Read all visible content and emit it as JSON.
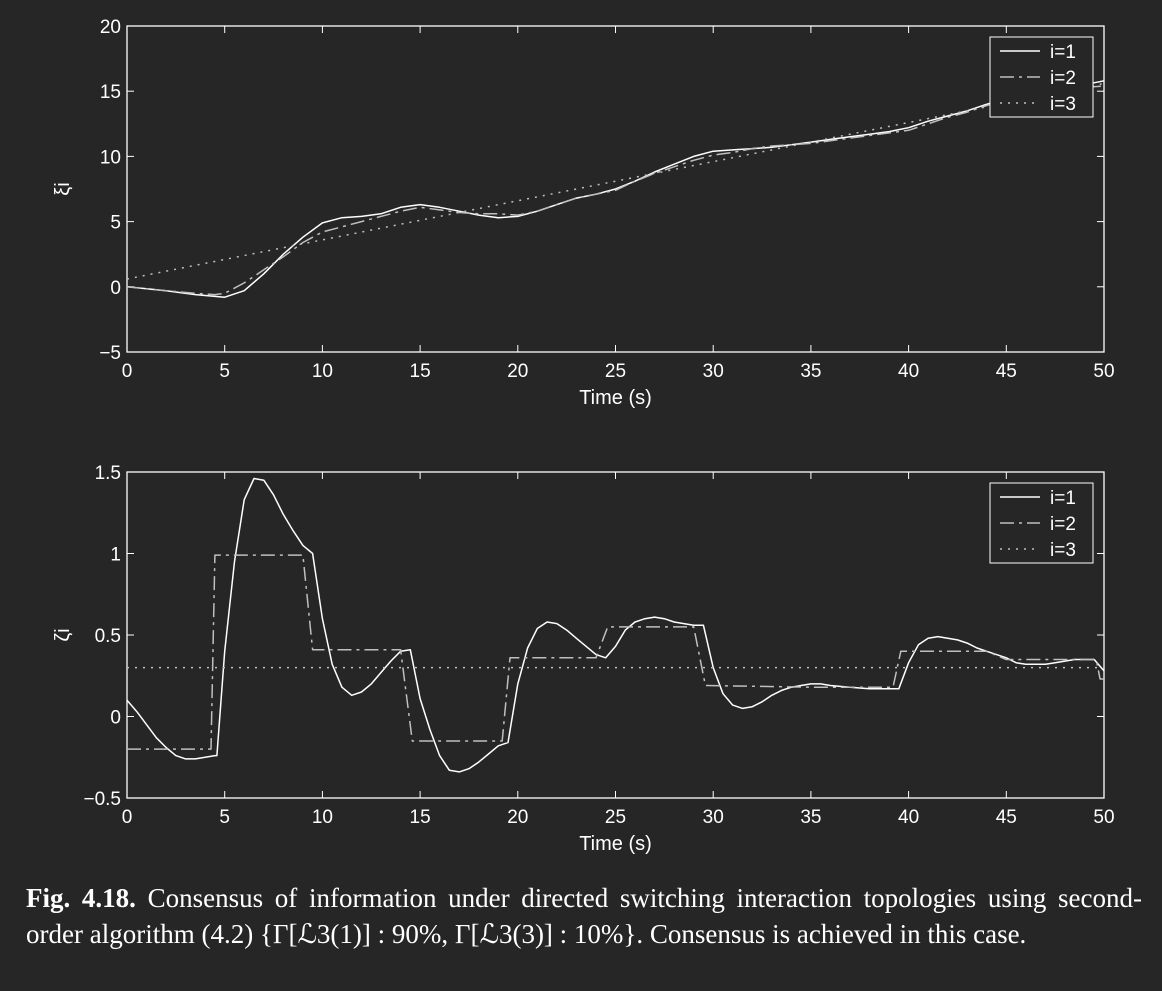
{
  "chart_data": [
    {
      "type": "line",
      "xlabel": "Time (s)",
      "ylabel": "ξi",
      "xlim": [
        0,
        50
      ],
      "ylim": [
        -5,
        20
      ],
      "xticks": [
        "0",
        "5",
        "10",
        "15",
        "20",
        "25",
        "30",
        "35",
        "40",
        "45",
        "50"
      ],
      "yticks": [
        "−5",
        "0",
        "5",
        "10",
        "15",
        "20"
      ],
      "legend_position": "top-right",
      "series": [
        {
          "name": "i=1",
          "style": "solid",
          "color": "#ffffff",
          "points": [
            [
              0,
              0
            ],
            [
              2,
              -0.3
            ],
            [
              3.5,
              -0.6
            ],
            [
              5,
              -0.8
            ],
            [
              6,
              -0.3
            ],
            [
              7,
              1
            ],
            [
              8,
              2.5
            ],
            [
              9,
              3.8
            ],
            [
              10,
              4.9
            ],
            [
              11,
              5.3
            ],
            [
              12,
              5.4
            ],
            [
              13,
              5.6
            ],
            [
              14,
              6.1
            ],
            [
              15,
              6.3
            ],
            [
              16,
              6.1
            ],
            [
              17,
              5.8
            ],
            [
              18,
              5.5
            ],
            [
              19,
              5.3
            ],
            [
              20,
              5.4
            ],
            [
              21,
              5.8
            ],
            [
              22,
              6.3
            ],
            [
              23,
              6.8
            ],
            [
              24,
              7.1
            ],
            [
              25,
              7.5
            ],
            [
              26,
              8.1
            ],
            [
              27,
              8.8
            ],
            [
              28,
              9.4
            ],
            [
              29,
              10
            ],
            [
              30,
              10.4
            ],
            [
              31,
              10.5
            ],
            [
              32,
              10.6
            ],
            [
              33,
              10.7
            ],
            [
              34,
              10.9
            ],
            [
              35,
              11.1
            ],
            [
              36,
              11.3
            ],
            [
              37,
              11.5
            ],
            [
              38,
              11.7
            ],
            [
              39,
              11.9
            ],
            [
              40,
              12.2
            ],
            [
              41,
              12.7
            ],
            [
              42,
              13.1
            ],
            [
              43,
              13.5
            ],
            [
              44,
              14
            ],
            [
              45,
              14.4
            ],
            [
              46,
              14.8
            ],
            [
              47,
              15.1
            ],
            [
              48,
              15.3
            ],
            [
              49,
              15.5
            ],
            [
              50,
              15.8
            ]
          ]
        },
        {
          "name": "i=2",
          "style": "dashdot",
          "color": "#bfbfbf",
          "points": [
            [
              0,
              0
            ],
            [
              2,
              -0.3
            ],
            [
              3.5,
              -0.5
            ],
            [
              4.5,
              -0.6
            ],
            [
              5,
              -0.5
            ],
            [
              6,
              0.3
            ],
            [
              7,
              1.3
            ],
            [
              8,
              2.3
            ],
            [
              9,
              3.4
            ],
            [
              10,
              4.2
            ],
            [
              11,
              4.6
            ],
            [
              12,
              5
            ],
            [
              13,
              5.4
            ],
            [
              14,
              5.8
            ],
            [
              15,
              6.1
            ],
            [
              16,
              5.9
            ],
            [
              17,
              5.7
            ],
            [
              18,
              5.6
            ],
            [
              19,
              5.6
            ],
            [
              20,
              5.5
            ],
            [
              21,
              5.8
            ],
            [
              22,
              6.3
            ],
            [
              23,
              6.8
            ],
            [
              24,
              7.1
            ],
            [
              25,
              7.4
            ],
            [
              26,
              8.1
            ],
            [
              27,
              8.7
            ],
            [
              28,
              9.2
            ],
            [
              29,
              9.7
            ],
            [
              30,
              10.1
            ],
            [
              31,
              10.3
            ],
            [
              32,
              10.6
            ],
            [
              33,
              10.8
            ],
            [
              34,
              10.9
            ],
            [
              35,
              11
            ],
            [
              36,
              11.2
            ],
            [
              37,
              11.4
            ],
            [
              38,
              11.6
            ],
            [
              39,
              11.8
            ],
            [
              40,
              12
            ],
            [
              41,
              12.5
            ],
            [
              42,
              13
            ],
            [
              43,
              13.4
            ],
            [
              44,
              13.9
            ],
            [
              45,
              14.4
            ],
            [
              46,
              14.7
            ],
            [
              47,
              15
            ],
            [
              48,
              15.2
            ],
            [
              49,
              15.3
            ],
            [
              50,
              15.4
            ]
          ]
        },
        {
          "name": "i=3",
          "style": "dotted",
          "color": "#bfbfbf",
          "points": [
            [
              0,
              0.6
            ],
            [
              50,
              15.6
            ]
          ]
        }
      ]
    },
    {
      "type": "line",
      "xlabel": "Time (s)",
      "ylabel": "ζi",
      "xlim": [
        0,
        50
      ],
      "ylim": [
        -0.5,
        1.5
      ],
      "xticks": [
        "0",
        "5",
        "10",
        "15",
        "20",
        "25",
        "30",
        "35",
        "40",
        "45",
        "50"
      ],
      "yticks": [
        "−0.5",
        "0",
        "0.5",
        "1",
        "1.5"
      ],
      "legend_position": "top-right",
      "series": [
        {
          "name": "i=1",
          "style": "solid",
          "color": "#ffffff",
          "points": [
            [
              0,
              0.1
            ],
            [
              0.5,
              0.03
            ],
            [
              1,
              -0.05
            ],
            [
              1.5,
              -0.13
            ],
            [
              2,
              -0.19
            ],
            [
              2.5,
              -0.24
            ],
            [
              3,
              -0.26
            ],
            [
              3.5,
              -0.26
            ],
            [
              4,
              -0.25
            ],
            [
              4.5,
              -0.24
            ],
            [
              4.6,
              -0.24
            ],
            [
              5,
              0.4
            ],
            [
              5.5,
              0.95
            ],
            [
              6,
              1.33
            ],
            [
              6.5,
              1.46
            ],
            [
              7,
              1.45
            ],
            [
              7.5,
              1.36
            ],
            [
              8,
              1.24
            ],
            [
              8.5,
              1.14
            ],
            [
              9,
              1.05
            ],
            [
              9.5,
              1
            ],
            [
              10,
              0.6
            ],
            [
              10.5,
              0.32
            ],
            [
              11,
              0.18
            ],
            [
              11.5,
              0.13
            ],
            [
              12,
              0.15
            ],
            [
              12.5,
              0.2
            ],
            [
              13,
              0.27
            ],
            [
              13.5,
              0.34
            ],
            [
              14,
              0.4
            ],
            [
              14.5,
              0.41
            ],
            [
              15,
              0.11
            ],
            [
              15.5,
              -0.08
            ],
            [
              16,
              -0.24
            ],
            [
              16.5,
              -0.33
            ],
            [
              17,
              -0.34
            ],
            [
              17.5,
              -0.32
            ],
            [
              18,
              -0.28
            ],
            [
              18.5,
              -0.23
            ],
            [
              19,
              -0.18
            ],
            [
              19.5,
              -0.16
            ],
            [
              20,
              0.2
            ],
            [
              20.5,
              0.42
            ],
            [
              21,
              0.54
            ],
            [
              21.5,
              0.58
            ],
            [
              22,
              0.57
            ],
            [
              22.5,
              0.53
            ],
            [
              23,
              0.48
            ],
            [
              23.5,
              0.43
            ],
            [
              24,
              0.38
            ],
            [
              24.5,
              0.36
            ],
            [
              25,
              0.43
            ],
            [
              25.5,
              0.53
            ],
            [
              26,
              0.58
            ],
            [
              26.5,
              0.6
            ],
            [
              27,
              0.61
            ],
            [
              27.5,
              0.6
            ],
            [
              28,
              0.58
            ],
            [
              28.5,
              0.57
            ],
            [
              29,
              0.56
            ],
            [
              29.5,
              0.56
            ],
            [
              30,
              0.3
            ],
            [
              30.5,
              0.14
            ],
            [
              31,
              0.07
            ],
            [
              31.5,
              0.05
            ],
            [
              32,
              0.06
            ],
            [
              32.5,
              0.09
            ],
            [
              33,
              0.13
            ],
            [
              33.5,
              0.16
            ],
            [
              34,
              0.18
            ],
            [
              34.5,
              0.19
            ],
            [
              35,
              0.2
            ],
            [
              35.5,
              0.2
            ],
            [
              36,
              0.19
            ],
            [
              37,
              0.18
            ],
            [
              38,
              0.17
            ],
            [
              38.5,
              0.17
            ],
            [
              39,
              0.17
            ],
            [
              39.5,
              0.17
            ],
            [
              40,
              0.33
            ],
            [
              40.5,
              0.44
            ],
            [
              41,
              0.48
            ],
            [
              41.5,
              0.49
            ],
            [
              42,
              0.48
            ],
            [
              42.5,
              0.47
            ],
            [
              43,
              0.45
            ],
            [
              43.5,
              0.42
            ],
            [
              44,
              0.4
            ],
            [
              44.5,
              0.38
            ],
            [
              45,
              0.36
            ],
            [
              45.5,
              0.33
            ],
            [
              46,
              0.32
            ],
            [
              46.5,
              0.32
            ],
            [
              47,
              0.32
            ],
            [
              47.5,
              0.33
            ],
            [
              48,
              0.34
            ],
            [
              48.5,
              0.35
            ],
            [
              49,
              0.35
            ],
            [
              49.5,
              0.35
            ],
            [
              50,
              0.28
            ]
          ]
        },
        {
          "name": "i=2",
          "style": "dashdot",
          "color": "#bfbfbf",
          "points": [
            [
              0,
              -0.2
            ],
            [
              4.3,
              -0.2
            ],
            [
              4.5,
              0.99
            ],
            [
              9,
              0.99
            ],
            [
              9.5,
              0.41
            ],
            [
              14,
              0.41
            ],
            [
              14.6,
              -0.15
            ],
            [
              19.2,
              -0.15
            ],
            [
              19.6,
              0.36
            ],
            [
              24,
              0.36
            ],
            [
              24.6,
              0.55
            ],
            [
              29,
              0.55
            ],
            [
              29.6,
              0.19
            ],
            [
              35,
              0.18
            ],
            [
              39.2,
              0.18
            ],
            [
              39.6,
              0.4
            ],
            [
              44,
              0.4
            ],
            [
              45,
              0.35
            ],
            [
              49.6,
              0.35
            ],
            [
              49.8,
              0.23
            ],
            [
              50,
              0.23
            ]
          ]
        },
        {
          "name": "i=3",
          "style": "dotted",
          "color": "#bfbfbf",
          "points": [
            [
              0,
              0.3
            ],
            [
              50,
              0.3
            ]
          ]
        }
      ]
    }
  ],
  "caption": {
    "fig_label": "Fig. 4.18.",
    "text": "Consensus of information under directed switching interaction topologies using second-order algorithm (4.2) {Γ[ℒ3(1)] : 90%, Γ[ℒ3(3)] : 10%}. Consensus is achieved in this case."
  }
}
